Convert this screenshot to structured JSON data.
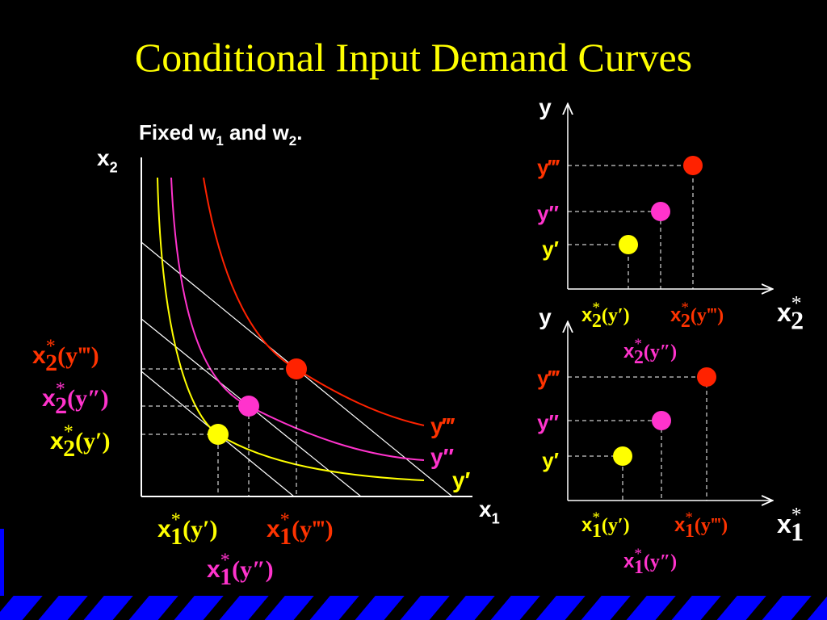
{
  "title": "Conditional Input Demand Curves",
  "isoquant_map": {
    "note": {
      "parts": [
        "Fixed w",
        "1",
        " and w",
        "2",
        "."
      ]
    },
    "y_axis_label": {
      "var": "x",
      "sub": "2"
    },
    "x_axis_label": {
      "var": "x",
      "sub": "1"
    },
    "curve_labels": [
      "y′",
      "y″",
      "y‴"
    ],
    "x2_demand_labels": [
      {
        "var": "x",
        "star": "*",
        "sub": "2",
        "arg": "(y′)"
      },
      {
        "var": "x",
        "star": "*",
        "sub": "2",
        "arg": "(y″)"
      },
      {
        "var": "x",
        "star": "*",
        "sub": "2",
        "arg": "(y‴)"
      }
    ],
    "x1_demand_labels": [
      {
        "var": "x",
        "star": "*",
        "sub": "1",
        "arg": "(y′)"
      },
      {
        "var": "x",
        "star": "*",
        "sub": "1",
        "arg": "(y″)"
      },
      {
        "var": "x",
        "star": "*",
        "sub": "1",
        "arg": "(y‴)"
      }
    ]
  },
  "x2_demand_chart": {
    "y_axis_label": "y",
    "output_labels": [
      "y′",
      "y″",
      "y‴"
    ],
    "x_labels": [
      {
        "var": "x",
        "star": "*",
        "sub": "2",
        "arg": "(y′)"
      },
      {
        "var": "x",
        "star": "*",
        "sub": "2",
        "arg": "(y″)"
      },
      {
        "var": "x",
        "star": "*",
        "sub": "2",
        "arg": "(y‴)"
      }
    ],
    "x_axis_label": {
      "var": "x",
      "star": "*",
      "sub": "2"
    }
  },
  "x1_demand_chart": {
    "y_axis_label": "y",
    "output_labels": [
      "y′",
      "y″",
      "y‴"
    ],
    "x_labels": [
      {
        "var": "x",
        "star": "*",
        "sub": "1",
        "arg": "(y′)"
      },
      {
        "var": "x",
        "star": "*",
        "sub": "1",
        "arg": "(y″)"
      },
      {
        "var": "x",
        "star": "*",
        "sub": "1",
        "arg": "(y‴)"
      }
    ],
    "x_axis_label": {
      "var": "x",
      "star": "*",
      "sub": "1"
    }
  }
}
